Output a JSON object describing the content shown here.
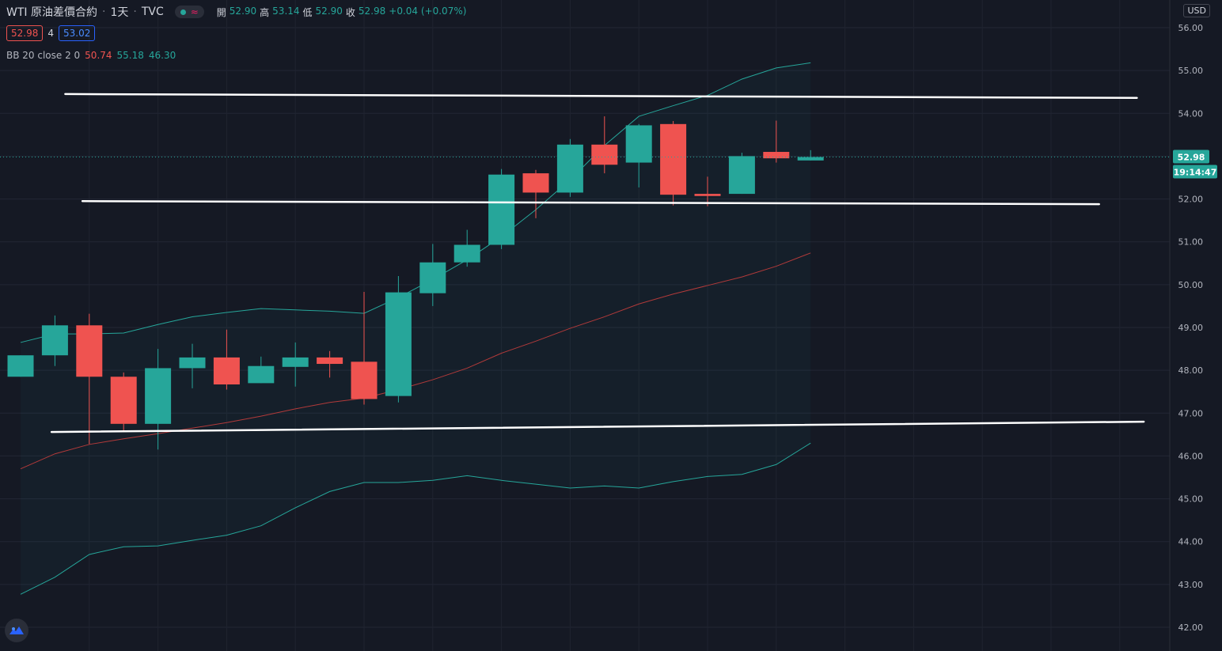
{
  "header": {
    "symbol": "WTI 原油差價合約",
    "interval": "1天",
    "sep": "·",
    "source": "TVC",
    "ohlc": {
      "open_label": "開",
      "open": "52.90",
      "high_label": "高",
      "high": "53.14",
      "low_label": "低",
      "low": "52.90",
      "close_label": "收",
      "close": "52.98",
      "change": "+0.04 (+0.07%)"
    }
  },
  "trade": {
    "sell": "52.98",
    "spread": "4",
    "buy": "53.02"
  },
  "indicator": {
    "label": "BB 20 close 2 0",
    "middle": "50.74",
    "upper": "55.18",
    "lower": "46.30"
  },
  "currency": "USD",
  "price_tag": {
    "price": "52.98",
    "countdown": "19:14:47"
  },
  "colors": {
    "background": "#151924",
    "up": "#26a69a",
    "down": "#ef5350",
    "band": "#26a69a",
    "basis": "#b23a3a",
    "trendline": "#ffffff"
  },
  "chart_data": {
    "type": "candlestick",
    "ylim": [
      41.8,
      56.3
    ],
    "y_ticks": [
      "56.00",
      "55.00",
      "54.00",
      "53.00",
      "52.00",
      "51.00",
      "50.00",
      "49.00",
      "48.00",
      "47.00",
      "46.00",
      "45.00",
      "44.00",
      "43.00",
      "42.00"
    ],
    "candles": [
      {
        "o": 47.85,
        "h": 48.35,
        "l": 47.85,
        "c": 48.35
      },
      {
        "o": 48.35,
        "h": 49.28,
        "l": 48.1,
        "c": 49.05
      },
      {
        "o": 49.05,
        "h": 49.32,
        "l": 46.28,
        "c": 47.85
      },
      {
        "o": 47.85,
        "h": 47.95,
        "l": 46.6,
        "c": 46.75
      },
      {
        "o": 46.75,
        "h": 48.5,
        "l": 46.15,
        "c": 48.05
      },
      {
        "o": 48.05,
        "h": 48.62,
        "l": 47.58,
        "c": 48.3
      },
      {
        "o": 48.3,
        "h": 48.95,
        "l": 47.55,
        "c": 47.67
      },
      {
        "o": 47.7,
        "h": 48.32,
        "l": 47.7,
        "c": 48.1
      },
      {
        "o": 48.08,
        "h": 48.65,
        "l": 47.62,
        "c": 48.3
      },
      {
        "o": 48.3,
        "h": 48.45,
        "l": 47.83,
        "c": 48.15
      },
      {
        "o": 48.2,
        "h": 49.83,
        "l": 47.2,
        "c": 47.33
      },
      {
        "o": 47.4,
        "h": 50.2,
        "l": 47.25,
        "c": 49.82
      },
      {
        "o": 49.8,
        "h": 50.95,
        "l": 49.5,
        "c": 50.52
      },
      {
        "o": 50.52,
        "h": 51.28,
        "l": 50.42,
        "c": 50.93
      },
      {
        "o": 50.93,
        "h": 52.7,
        "l": 50.83,
        "c": 52.57
      },
      {
        "o": 52.6,
        "h": 52.68,
        "l": 51.55,
        "c": 52.15
      },
      {
        "o": 52.15,
        "h": 53.4,
        "l": 52.05,
        "c": 53.27
      },
      {
        "o": 53.27,
        "h": 53.93,
        "l": 52.6,
        "c": 52.8
      },
      {
        "o": 52.85,
        "h": 53.75,
        "l": 52.27,
        "c": 53.72
      },
      {
        "o": 53.75,
        "h": 53.82,
        "l": 51.85,
        "c": 52.1
      },
      {
        "o": 52.12,
        "h": 52.52,
        "l": 51.83,
        "c": 52.07
      },
      {
        "o": 52.12,
        "h": 53.08,
        "l": 52.12,
        "c": 53.0
      },
      {
        "o": 53.1,
        "h": 53.83,
        "l": 52.85,
        "c": 52.95
      },
      {
        "o": 52.9,
        "h": 53.14,
        "l": 52.9,
        "c": 52.98
      }
    ],
    "bb_upper": [
      48.65,
      48.85,
      48.85,
      48.87,
      49.07,
      49.25,
      49.35,
      49.44,
      49.41,
      49.38,
      49.33,
      49.7,
      50.12,
      50.58,
      51.12,
      51.75,
      52.45,
      53.25,
      53.93,
      54.18,
      54.42,
      54.8,
      55.06,
      55.18
    ],
    "bb_middle": [
      45.7,
      46.05,
      46.27,
      46.4,
      46.52,
      46.65,
      46.78,
      46.93,
      47.1,
      47.25,
      47.35,
      47.55,
      47.78,
      48.05,
      48.4,
      48.68,
      48.98,
      49.25,
      49.55,
      49.78,
      49.98,
      50.18,
      50.43,
      50.74
    ],
    "bb_lower": [
      42.77,
      43.17,
      43.7,
      43.88,
      43.9,
      44.03,
      44.15,
      44.37,
      44.79,
      45.17,
      45.38,
      45.38,
      45.43,
      45.54,
      45.43,
      45.34,
      45.25,
      45.3,
      45.25,
      45.4,
      45.52,
      45.57,
      45.8,
      46.3
    ],
    "trendlines": [
      {
        "x1": 1.3,
        "y1": 54.45,
        "x2": 32.5,
        "y2": 54.36
      },
      {
        "x1": 1.8,
        "y1": 51.95,
        "x2": 31.4,
        "y2": 51.88
      },
      {
        "x1": 0.9,
        "y1": 46.56,
        "x2": 32.7,
        "y2": 46.8
      }
    ]
  }
}
